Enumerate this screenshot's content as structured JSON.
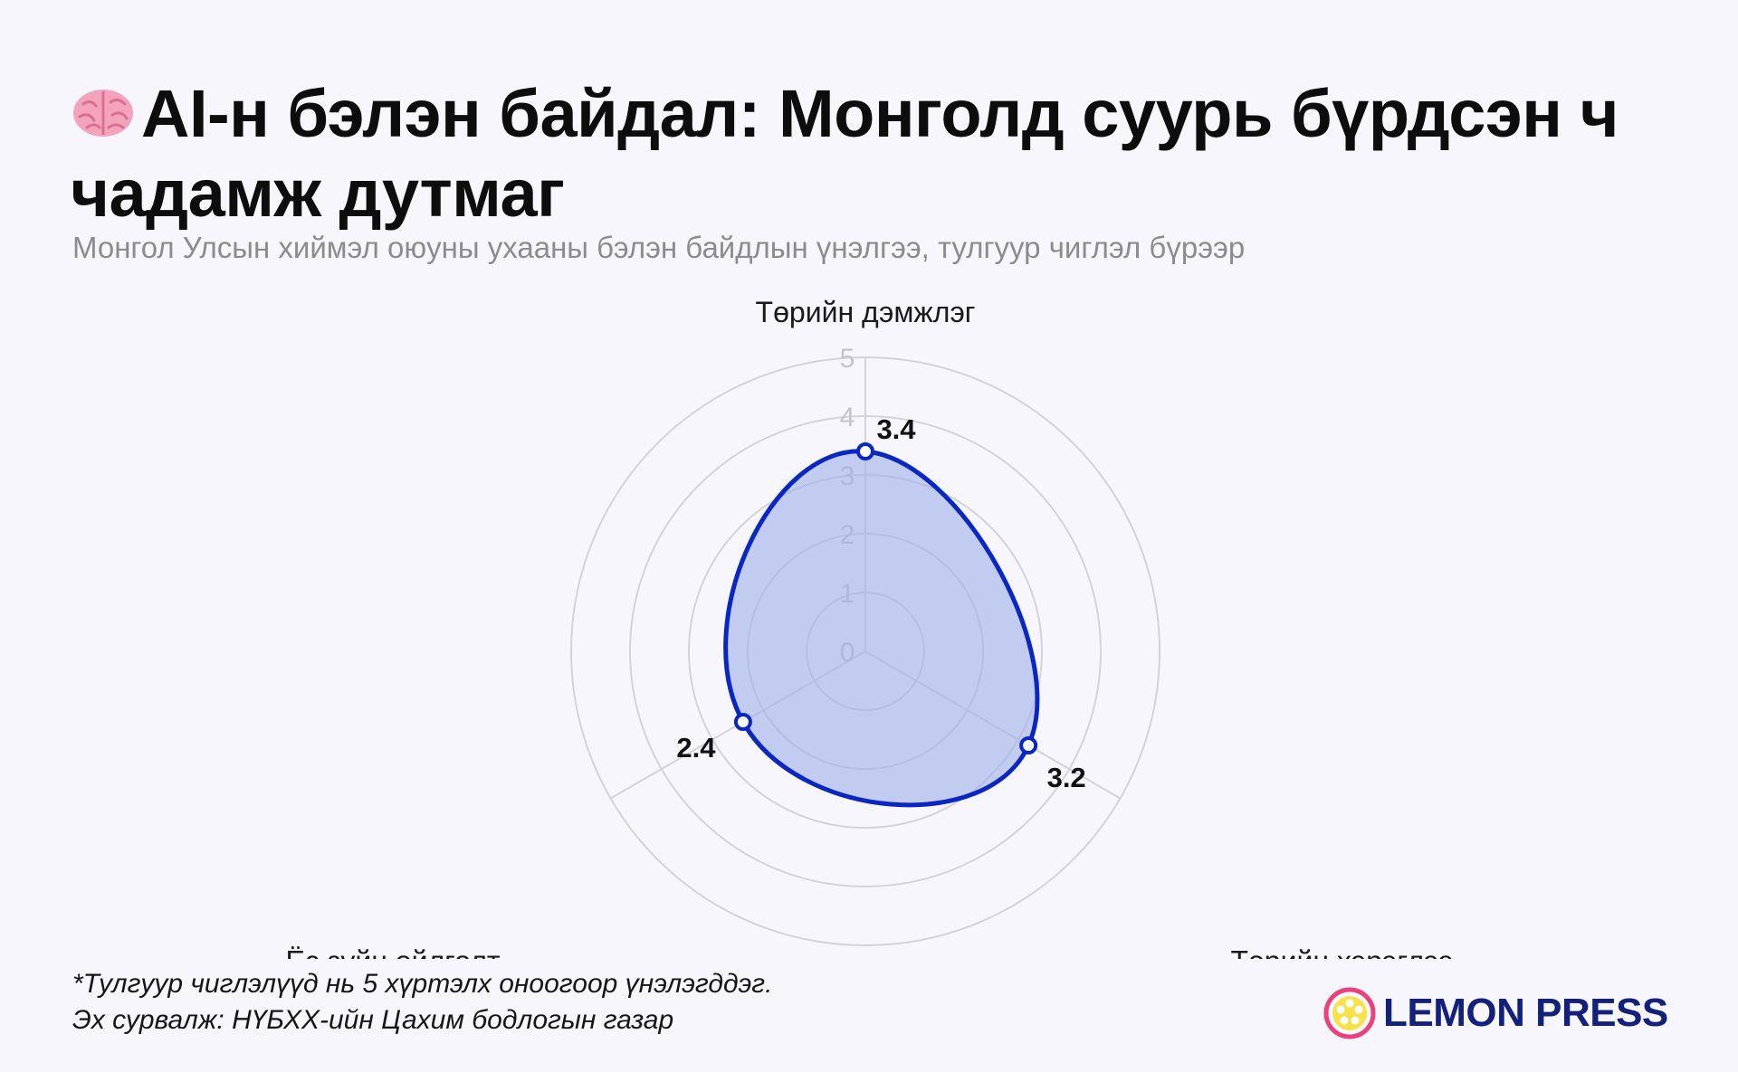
{
  "header": {
    "emoji_icon": "brain-icon",
    "title": "AI-н бэлэн байдал: Монголд суурь бүрдсэн ч чадамж дутмаг",
    "subtitle": "Монгол Улсын хиймэл оюуны ухааны бэлэн байдлын үнэлгээ, тулгуур чиглэл бүрээр"
  },
  "chart_data": {
    "type": "radar",
    "title": "AI-н бэлэн байдал: Монголд суурь бүрдсэн ч чадамж дутмаг",
    "subtitle": "Монгол Улсын хиймэл оюуны ухааны бэлэн байдлын үнэлгээ, тулгуур чиглэл бүрээр",
    "categories": [
      "Төрийн дэмжлэг",
      "Төрийн хэрэглээ",
      "Ёс зүйн ойлголт"
    ],
    "values": [
      3.4,
      3.2,
      2.4
    ],
    "value_labels": [
      "3.4",
      "3.2",
      "2.4"
    ],
    "range": [
      0,
      5
    ],
    "ticks": [
      "0",
      "1",
      "2",
      "3",
      "4",
      "5"
    ],
    "grid": true,
    "legend": "none",
    "curve": "smooth",
    "colors": {
      "line": "#0a27c4",
      "fill": "#9fb0ea",
      "grid": "#d4d4d8",
      "tick": "#c4c4c8"
    }
  },
  "footer": {
    "note": "*Тулгуур чиглэлүүд нь 5 хүртэлх оноогоор үнэлэгддэг.",
    "source": "Эх сурвалж: НҮБХХ-ийн Цахим бодлогын газар"
  },
  "brand": {
    "name": "LEMON PRESS",
    "icon": "lemon-icon",
    "color": "#14217a"
  }
}
